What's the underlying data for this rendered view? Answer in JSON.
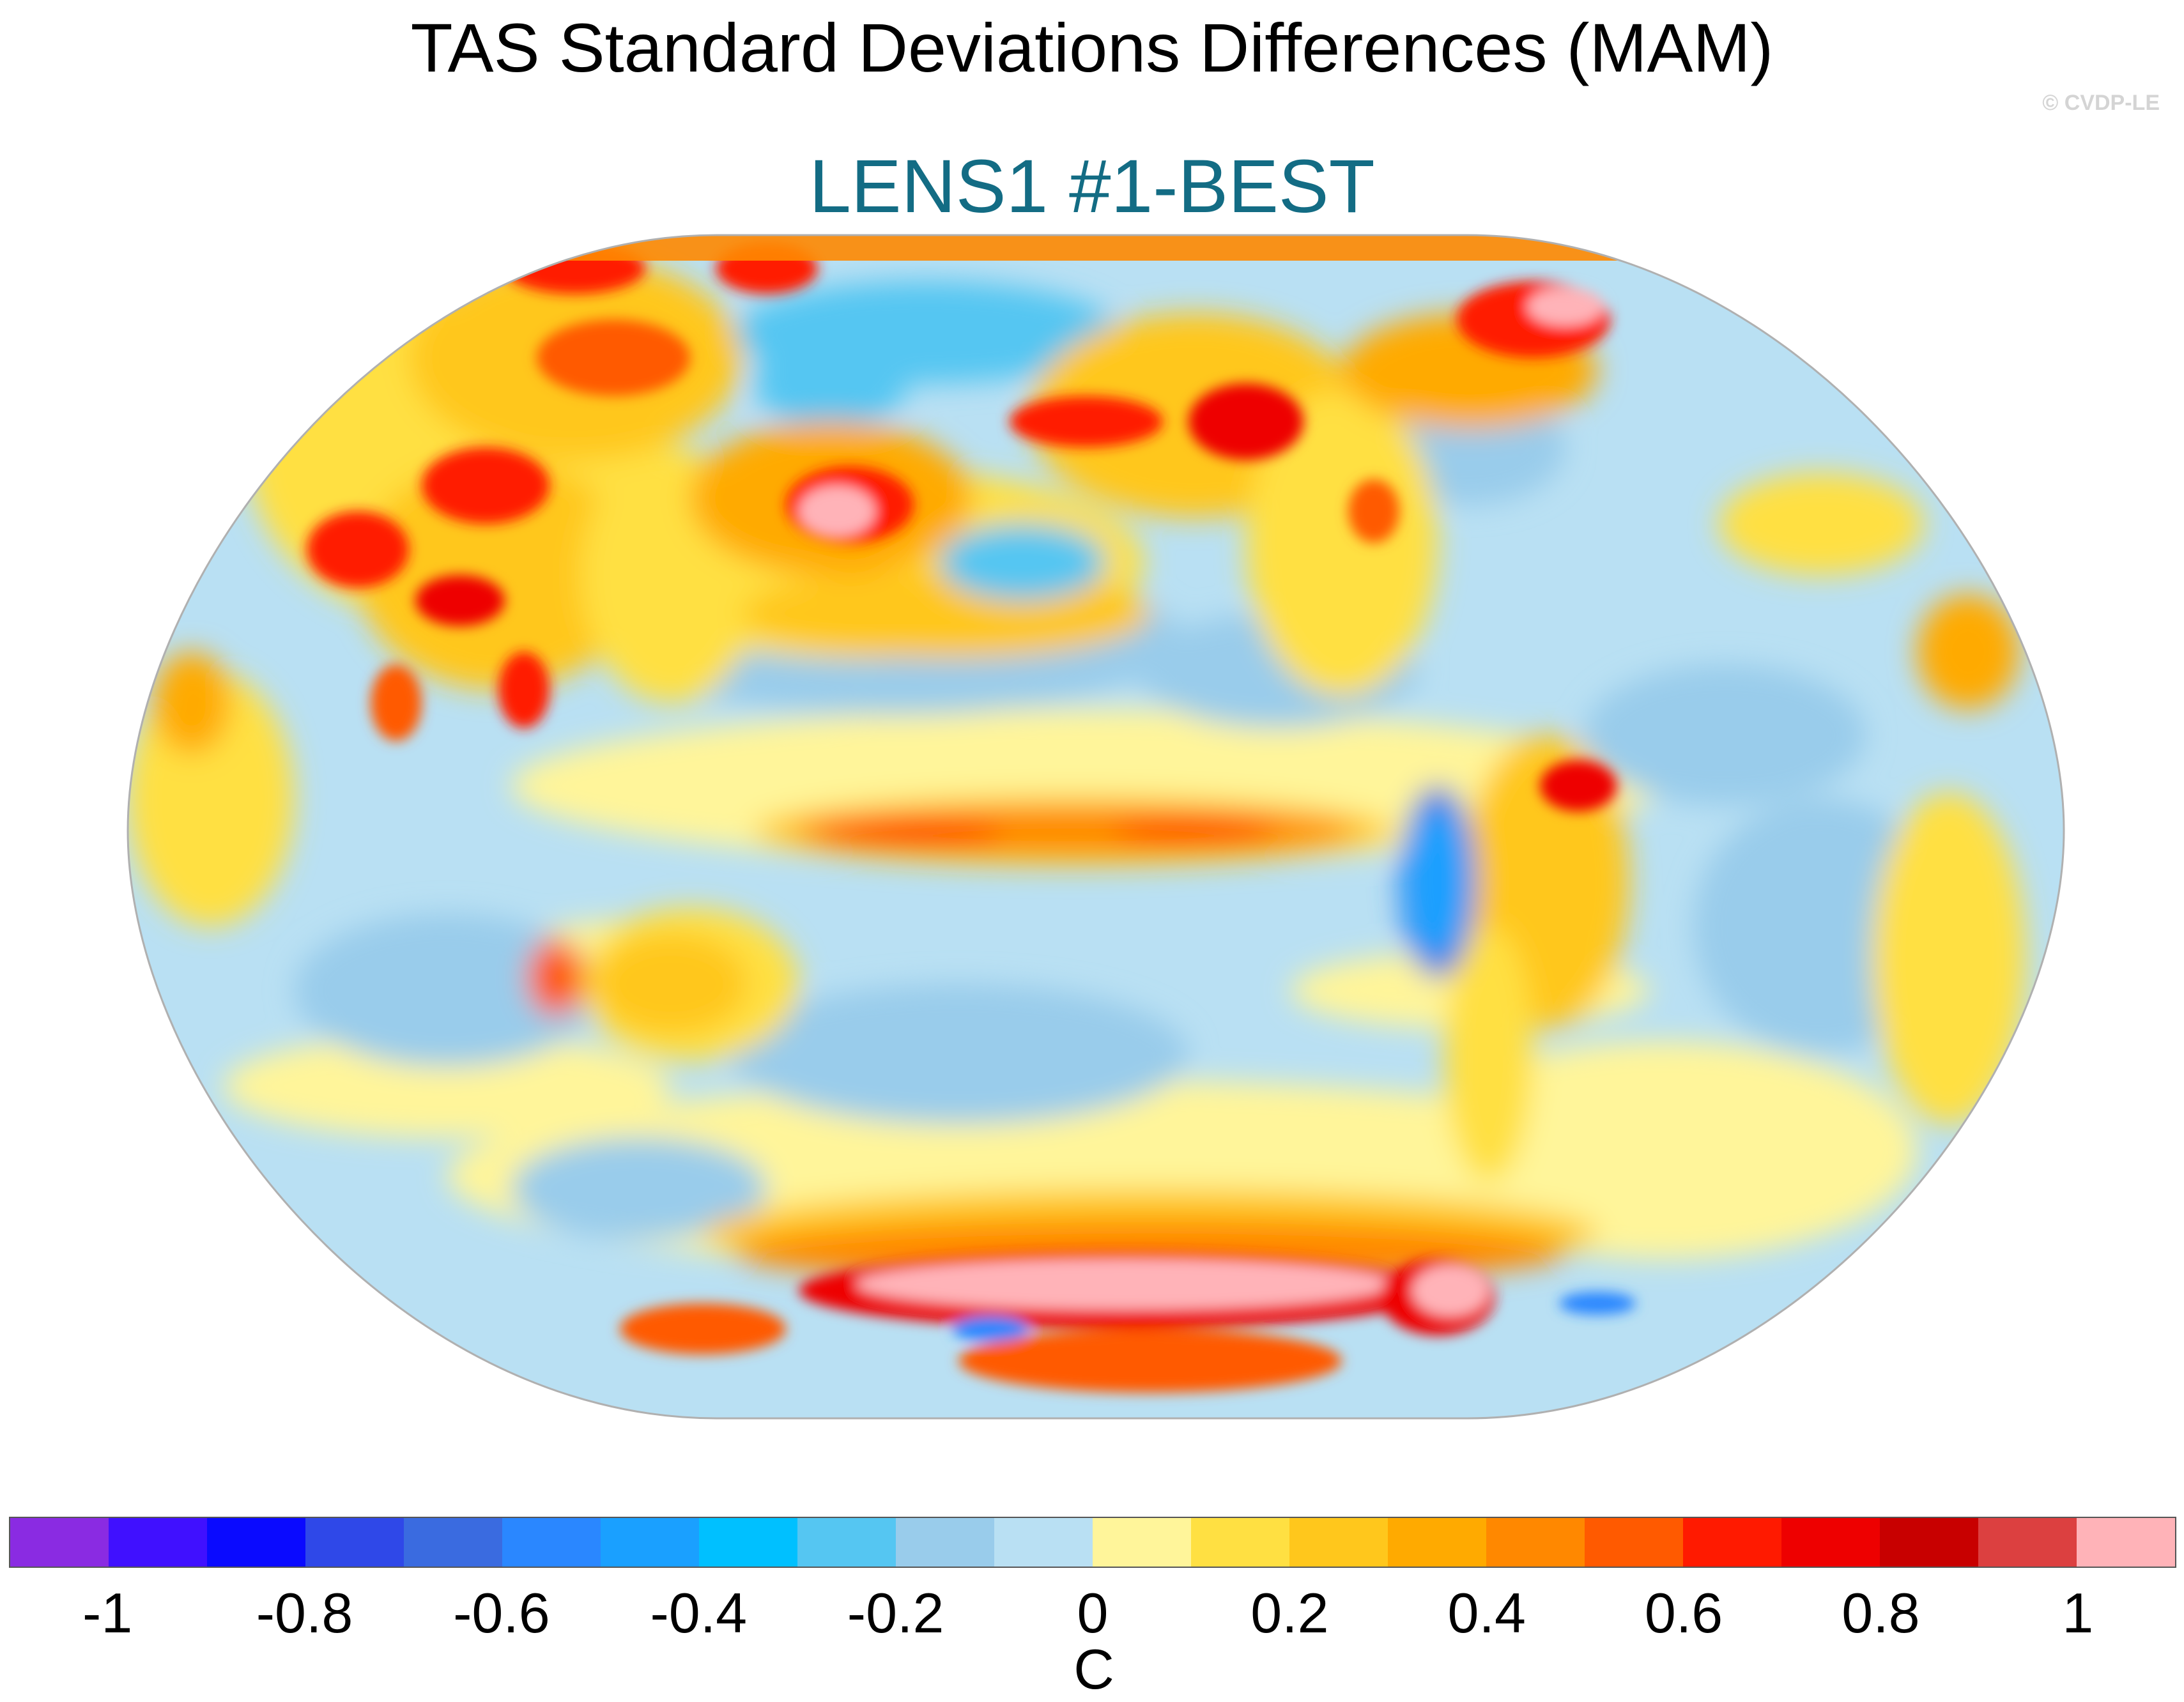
{
  "title": "TAS Standard Deviations Differences (MAM)",
  "subtitle": "LENS1 #1-BEST",
  "subtitle_color": "#136c84",
  "watermark": "© CVDP-LE",
  "map": {
    "projection": "robinson",
    "variable": "TAS standard deviation difference"
  },
  "colorbar": {
    "unit_label": "C",
    "tick_labels": [
      "-1",
      "-0.8",
      "-0.6",
      "-0.4",
      "-0.2",
      "0",
      "0.2",
      "0.4",
      "0.6",
      "0.8",
      "1"
    ],
    "tick_values": [
      -1,
      -0.8,
      -0.6,
      -0.4,
      -0.2,
      0,
      0.2,
      0.4,
      0.6,
      0.8,
      1
    ],
    "colors": [
      "#8a2be2",
      "#4010ff",
      "#0a0aff",
      "#2f48e8",
      "#3a6be0",
      "#2a87ff",
      "#1aa0ff",
      "#00c0ff",
      "#55c6f2",
      "#99cceb",
      "#b9e0f3",
      "#fff59a",
      "#ffe042",
      "#ffc71c",
      "#ffaa00",
      "#ff8800",
      "#ff5a00",
      "#ff1a00",
      "#ee0000",
      "#c80000",
      "#dc4040",
      "#ffb3b8"
    ]
  }
}
